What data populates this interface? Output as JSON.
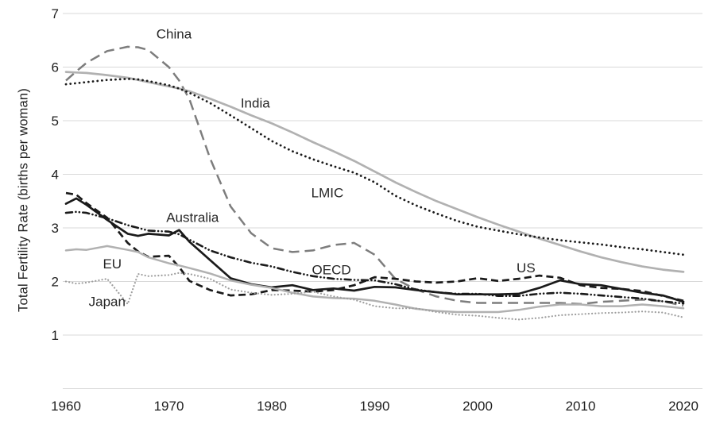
{
  "chart_data": {
    "type": "line",
    "title": "",
    "xlabel": "",
    "ylabel": "Total Fertility Rate (births per woman)",
    "xlim": [
      1960,
      2020
    ],
    "ylim": [
      0,
      7
    ],
    "xticks": [
      1960,
      1970,
      1980,
      1990,
      2000,
      2010,
      2020
    ],
    "yticks": [
      1,
      2,
      3,
      4,
      5,
      6,
      7
    ],
    "grid": "horizontal-only",
    "legend": "inline-labels-next-to-lines",
    "colors": {
      "black_series": "#1a1a1a",
      "medium_gray": "#7d7d7d",
      "light_gray": "#b1b1b1",
      "japan_gray": "#9e9e9e",
      "gridline": "#d8d8d8",
      "text": "#1f1f1f"
    },
    "x": [
      1960,
      1961,
      1962,
      1964,
      1966,
      1967,
      1968,
      1970,
      1971,
      1972,
      1974,
      1976,
      1978,
      1980,
      1982,
      1984,
      1986,
      1988,
      1990,
      1992,
      1994,
      1996,
      1998,
      2000,
      2002,
      2004,
      2006,
      2008,
      2010,
      2012,
      2014,
      2016,
      2018,
      2020
    ],
    "series": [
      {
        "name": "China",
        "color": "#7d7d7d",
        "style": "longdash",
        "width": 2.5,
        "label": {
          "x": 1970.5,
          "y": 6.62
        },
        "values": [
          5.75,
          5.92,
          6.08,
          6.3,
          6.38,
          6.37,
          6.32,
          6.0,
          5.75,
          5.4,
          4.3,
          3.4,
          2.9,
          2.62,
          2.55,
          2.58,
          2.68,
          2.72,
          2.5,
          2.05,
          1.85,
          1.72,
          1.64,
          1.6,
          1.6,
          1.6,
          1.6,
          1.6,
          1.58,
          1.62,
          1.64,
          1.66,
          1.63,
          1.55
        ]
      },
      {
        "name": "India",
        "color": "#b1b1b1",
        "style": "solid",
        "width": 2.7,
        "label": {
          "x": 1978.4,
          "y": 5.33
        },
        "values": [
          5.91,
          5.9,
          5.89,
          5.85,
          5.8,
          5.76,
          5.72,
          5.64,
          5.6,
          5.55,
          5.41,
          5.26,
          5.1,
          4.95,
          4.78,
          4.6,
          4.43,
          4.25,
          4.05,
          3.85,
          3.67,
          3.5,
          3.35,
          3.2,
          3.06,
          2.93,
          2.8,
          2.68,
          2.56,
          2.45,
          2.36,
          2.28,
          2.22,
          2.18
        ]
      },
      {
        "name": "LMIC",
        "color": "#1a1a1a",
        "style": "dot",
        "width": 2.8,
        "label": {
          "x": 1985.4,
          "y": 3.66
        },
        "values": [
          5.68,
          5.7,
          5.72,
          5.76,
          5.78,
          5.77,
          5.74,
          5.66,
          5.6,
          5.52,
          5.33,
          5.1,
          4.86,
          4.62,
          4.43,
          4.28,
          4.15,
          4.03,
          3.85,
          3.6,
          3.42,
          3.27,
          3.13,
          3.02,
          2.95,
          2.88,
          2.82,
          2.77,
          2.73,
          2.69,
          2.64,
          2.6,
          2.55,
          2.5
        ]
      },
      {
        "name": "Australia",
        "color": "#1a1a1a",
        "style": "solid",
        "width": 2.7,
        "label": {
          "x": 1972.3,
          "y": 3.2
        },
        "values": [
          3.45,
          3.55,
          3.43,
          3.15,
          2.89,
          2.85,
          2.89,
          2.86,
          2.96,
          2.74,
          2.4,
          2.06,
          1.95,
          1.89,
          1.93,
          1.84,
          1.87,
          1.83,
          1.9,
          1.89,
          1.84,
          1.8,
          1.76,
          1.76,
          1.76,
          1.77,
          1.88,
          2.02,
          1.95,
          1.93,
          1.86,
          1.79,
          1.74,
          1.62
        ]
      },
      {
        "name": "US",
        "color": "#1a1a1a",
        "style": "dash",
        "width": 2.7,
        "label": {
          "x": 2004.7,
          "y": 2.26
        },
        "values": [
          3.65,
          3.62,
          3.46,
          3.19,
          2.72,
          2.56,
          2.46,
          2.48,
          2.27,
          2.01,
          1.84,
          1.74,
          1.76,
          1.84,
          1.83,
          1.81,
          1.84,
          1.93,
          2.08,
          2.05,
          2.0,
          1.98,
          2.0,
          2.06,
          2.01,
          2.05,
          2.11,
          2.07,
          1.93,
          1.88,
          1.86,
          1.82,
          1.73,
          1.64
        ]
      },
      {
        "name": "OECD",
        "color": "#1a1a1a",
        "style": "dashdotdot",
        "width": 2.6,
        "label": {
          "x": 1985.8,
          "y": 2.22
        },
        "values": [
          3.28,
          3.3,
          3.28,
          3.18,
          3.05,
          3.0,
          2.95,
          2.93,
          2.88,
          2.78,
          2.58,
          2.45,
          2.35,
          2.28,
          2.18,
          2.1,
          2.05,
          2.03,
          2.02,
          1.95,
          1.85,
          1.8,
          1.77,
          1.77,
          1.73,
          1.73,
          1.77,
          1.79,
          1.77,
          1.74,
          1.71,
          1.68,
          1.63,
          1.59
        ]
      },
      {
        "name": "EU",
        "color": "#b1b1b1",
        "style": "solid",
        "width": 2.5,
        "label": {
          "x": 1964.5,
          "y": 2.33
        },
        "values": [
          2.58,
          2.6,
          2.59,
          2.66,
          2.59,
          2.55,
          2.45,
          2.34,
          2.3,
          2.25,
          2.15,
          2.02,
          1.94,
          1.88,
          1.79,
          1.72,
          1.69,
          1.68,
          1.64,
          1.57,
          1.49,
          1.45,
          1.43,
          1.43,
          1.43,
          1.47,
          1.53,
          1.57,
          1.57,
          1.54,
          1.54,
          1.57,
          1.54,
          1.5
        ]
      },
      {
        "name": "Japan",
        "color": "#9e9e9e",
        "style": "dot-small",
        "width": 2.2,
        "label": {
          "x": 1964.0,
          "y": 1.63
        },
        "values": [
          2.0,
          1.96,
          1.98,
          2.05,
          1.58,
          2.14,
          2.1,
          2.12,
          2.16,
          2.14,
          2.05,
          1.85,
          1.79,
          1.75,
          1.77,
          1.81,
          1.72,
          1.66,
          1.54,
          1.5,
          1.5,
          1.43,
          1.38,
          1.36,
          1.32,
          1.29,
          1.32,
          1.37,
          1.39,
          1.41,
          1.42,
          1.44,
          1.42,
          1.33
        ]
      }
    ]
  }
}
